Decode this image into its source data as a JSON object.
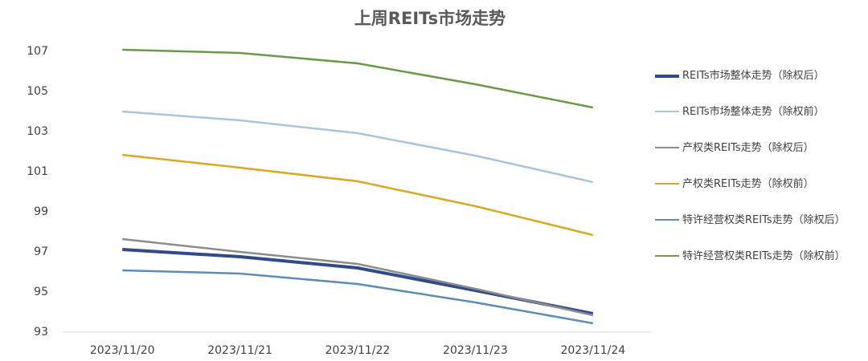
{
  "chart_data": {
    "type": "line",
    "title": "上周REITs市场走势",
    "categories": [
      "2023/11/20",
      "2023/11/21",
      "2023/11/22",
      "2023/11/23",
      "2023/11/24"
    ],
    "series": [
      {
        "name": "REITs市场整体走势（除权后）",
        "color": "#2f4b8a",
        "width": 4,
        "values": [
          97.12,
          96.76,
          96.2,
          95.08,
          93.92
        ]
      },
      {
        "name": "REITs市场整体走势（除权前）",
        "color": "#a9c4dc",
        "width": 2.5,
        "values": [
          104.0,
          103.56,
          102.92,
          101.8,
          100.48
        ]
      },
      {
        "name": "产权类REITs走势（除权后）",
        "color": "#8c8c8c",
        "width": 2.5,
        "values": [
          97.64,
          97.0,
          96.4,
          95.16,
          93.84
        ]
      },
      {
        "name": "产权类REITs走势（除权前）",
        "color": "#d9a925",
        "width": 2.5,
        "values": [
          101.84,
          101.2,
          100.52,
          99.28,
          97.84
        ]
      },
      {
        "name": "特许经营权类REITs走势（除权后）",
        "color": "#5b8db5",
        "width": 2.5,
        "values": [
          96.08,
          95.92,
          95.4,
          94.48,
          93.44
        ]
      },
      {
        "name": "特许经营权类REITs走势（除权前）",
        "color": "#6a9a48",
        "width": 2.5,
        "values": [
          107.08,
          106.92,
          106.4,
          105.36,
          104.2
        ]
      }
    ],
    "ylim": [
      93,
      107
    ],
    "yticks": [
      93,
      95,
      97,
      99,
      101,
      103,
      105,
      107
    ],
    "grid": false
  }
}
